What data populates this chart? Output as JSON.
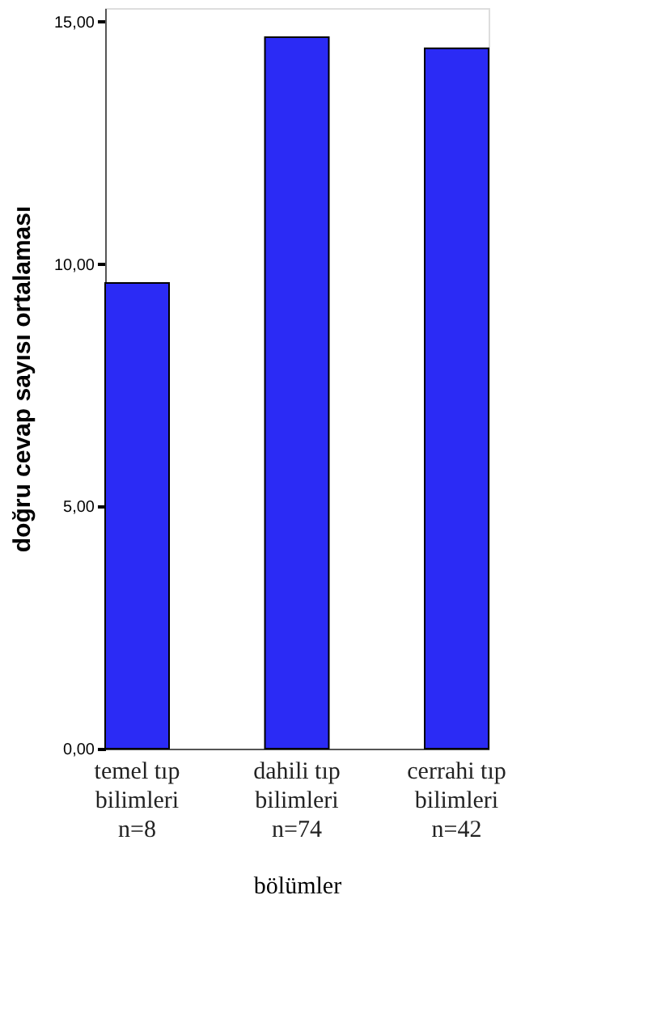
{
  "chart_data": {
    "type": "bar",
    "ylabel": "doğru cevap sayısı ortalaması",
    "xlabel": "bölümler",
    "categories": [
      "temel tıp\nbilimleri\nn=8",
      "dahili tıp\nbilimleri\nn=74",
      "cerrahi tıp\nbilimleri\nn=42"
    ],
    "values": [
      9.61,
      14.68,
      14.45
    ],
    "color": "#2b2bf5",
    "ylim": [
      0,
      15.28
    ],
    "yticks": [
      {
        "value": 0,
        "label": "0,00"
      },
      {
        "value": 5,
        "label": "5,00"
      },
      {
        "value": 10,
        "label": "10,00"
      },
      {
        "value": 15,
        "label": "15,00"
      }
    ],
    "grid": false
  }
}
